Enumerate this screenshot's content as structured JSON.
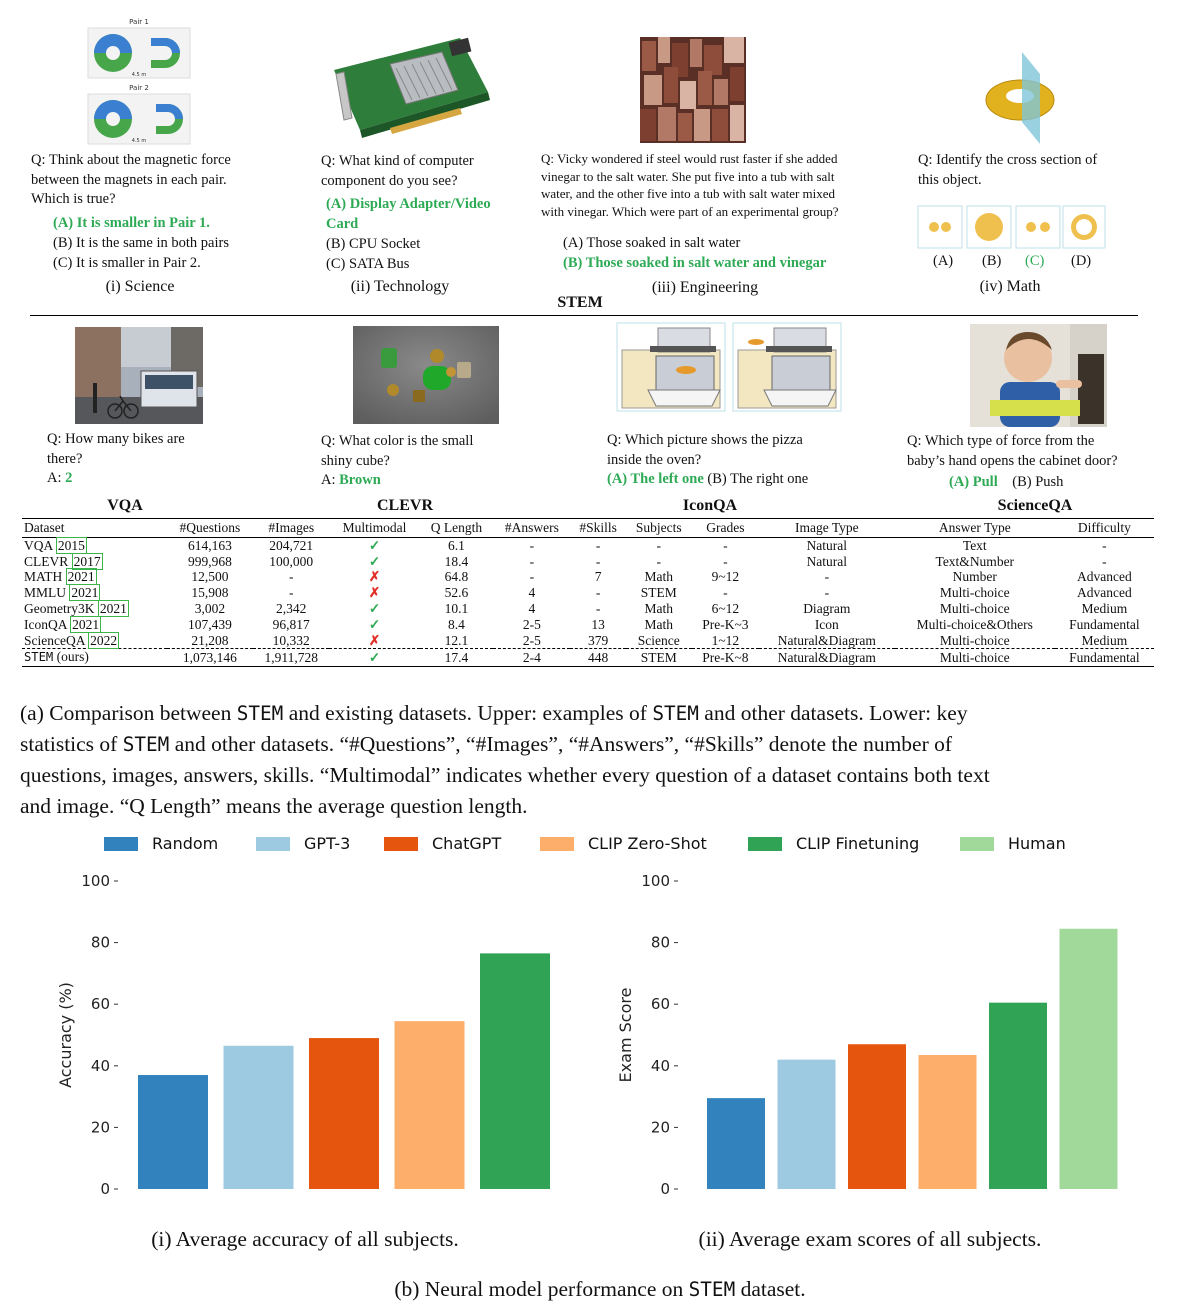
{
  "top": {
    "science": {
      "pair1": "Pair 1",
      "pair2": "Pair 2",
      "dist": "4.5 m",
      "question": [
        "Q: Think about the magnetic force",
        "between the magnets in each pair.",
        "Which is true?"
      ],
      "options": [
        "(A) It is smaller in Pair 1.",
        "(B) It is the same in both pairs",
        "(C) It is smaller in Pair 2."
      ],
      "label": "(i) Science"
    },
    "technology": {
      "question": [
        "Q: What kind of computer",
        "component do you see?"
      ],
      "options": [
        "(A) Display Adapter/Video",
        "Card",
        "(B) CPU Socket",
        "(C) SATA Bus"
      ],
      "label": "(ii) Technology"
    },
    "engineering": {
      "question": [
        "Q: Vicky wondered if steel would rust faster if she added",
        "vinegar to the salt water. She put five into a tub with salt",
        "water, and the other five into a tub with salt water mixed",
        "with vinegar. Which were part of an experimental group?"
      ],
      "options": [
        "(A) Those soaked in salt water",
        "(B) Those soaked in salt water and vinegar"
      ],
      "label": "(iii) Engineering"
    },
    "math": {
      "question": [
        "Q: Identify the cross section of",
        "this object."
      ],
      "choices": [
        "(A)",
        "(B)",
        "(C)",
        "(D)"
      ],
      "label": "(iv) Math"
    },
    "stem_label": "STEM"
  },
  "datasets": {
    "vqa": {
      "question": [
        "Q: How many bikes are",
        "there?"
      ],
      "answer_prefix": "A: ",
      "answer": "2",
      "title": "VQA"
    },
    "clevr": {
      "question": [
        "Q: What color is the small",
        "shiny cube?"
      ],
      "answer_prefix": "A: ",
      "answer": "Brown",
      "title": "CLEVR"
    },
    "iconqa": {
      "question": [
        "Q: Which picture shows the pizza",
        "inside the oven?"
      ],
      "opt_a": "(A) The left one",
      "opt_b": "(B) The right one",
      "title": "IconQA"
    },
    "scienceqa": {
      "question": [
        "Q: Which type of force from the",
        "baby’s hand opens the cabinet door?"
      ],
      "opt_a": "(A) Pull",
      "opt_b": "(B) Push",
      "title": "ScienceQA"
    }
  },
  "table": {
    "headers": [
      "Dataset",
      "#Questions",
      "#Images",
      "Multimodal",
      "Q Length",
      "#Answers",
      "#Skills",
      "Subjects",
      "Grades",
      "Image Type",
      "Answer Type",
      "Difficulty"
    ],
    "rows": [
      {
        "name": "VQA",
        "cite": "2015",
        "questions": "614,163",
        "images": "204,721",
        "mm": "✓",
        "qlen": "6.1",
        "answers": "-",
        "skills": "-",
        "subjects": "-",
        "grades": "-",
        "imgtype": "Natural",
        "anstype": "Text",
        "difficulty": "-"
      },
      {
        "name": "CLEVR",
        "cite": "2017",
        "questions": "999,968",
        "images": "100,000",
        "mm": "✓",
        "qlen": "18.4",
        "answers": "-",
        "skills": "-",
        "subjects": "-",
        "grades": "-",
        "imgtype": "Natural",
        "anstype": "Text&Number",
        "difficulty": "-"
      },
      {
        "name": "MATH",
        "cite": "2021",
        "questions": "12,500",
        "images": "-",
        "mm": "✗",
        "qlen": "64.8",
        "answers": "-",
        "skills": "7",
        "subjects": "Math",
        "grades": "9~12",
        "imgtype": "-",
        "anstype": "Number",
        "difficulty": "Advanced"
      },
      {
        "name": "MMLU",
        "cite": "2021",
        "questions": "15,908",
        "images": "-",
        "mm": "✗",
        "qlen": "52.6",
        "answers": "4",
        "skills": "-",
        "subjects": "STEM",
        "grades": "-",
        "imgtype": "-",
        "anstype": "Multi-choice",
        "difficulty": "Advanced"
      },
      {
        "name": "Geometry3K",
        "cite": "2021",
        "questions": "3,002",
        "images": "2,342",
        "mm": "✓",
        "qlen": "10.1",
        "answers": "4",
        "skills": "-",
        "subjects": "Math",
        "grades": "6~12",
        "imgtype": "Diagram",
        "anstype": "Multi-choice",
        "difficulty": "Medium"
      },
      {
        "name": "IconQA",
        "cite": "2021",
        "questions": "107,439",
        "images": "96,817",
        "mm": "✓",
        "qlen": "8.4",
        "answers": "2-5",
        "skills": "13",
        "subjects": "Math",
        "grades": "Pre-K~3",
        "imgtype": "Icon",
        "anstype": "Multi-choice&Others",
        "difficulty": "Fundamental"
      },
      {
        "name": "ScienceQA",
        "cite": "2022",
        "questions": "21,208",
        "images": "10,332",
        "mm": "✗",
        "qlen": "12.1",
        "answers": "2-5",
        "skills": "379",
        "subjects": "Science",
        "grades": "1~12",
        "imgtype": "Natural&Diagram",
        "anstype": "Multi-choice",
        "difficulty": "Medium"
      }
    ],
    "ours": {
      "name": "STEM",
      "suffix": " (ours)",
      "questions": "1,073,146",
      "images": "1,911,728",
      "mm": "✓",
      "qlen": "17.4",
      "answers": "2-4",
      "skills": "448",
      "subjects": "STEM",
      "grades": "Pre-K~8",
      "imgtype": "Natural&Diagram",
      "anstype": "Multi-choice",
      "difficulty": "Fundamental"
    }
  },
  "caption_a": {
    "text": [
      "(a) Comparison between ",
      "STEM",
      " and existing datasets. Upper: examples of ",
      "STEM",
      " and other datasets. Lower: key",
      "statistics of ",
      "STEM",
      " and other datasets. “#Questions”, “#Images”, “#Answers”, “#Skills” denote the number of",
      "questions, images, answers, skills. “Multimodal” indicates whether every question of a dataset contains both text",
      "and image. “Q Length” means the average question length."
    ]
  },
  "legend": [
    {
      "name": "Random",
      "color": "#3182bd"
    },
    {
      "name": "GPT-3",
      "color": "#9ecae1"
    },
    {
      "name": "ChatGPT",
      "color": "#e6550d"
    },
    {
      "name": "CLIP Zero-Shot",
      "color": "#fdae6b"
    },
    {
      "name": "CLIP Finetuning",
      "color": "#31a354"
    },
    {
      "name": "Human",
      "color": "#a1d99b"
    }
  ],
  "chart_data": [
    {
      "type": "bar",
      "categories": [
        "Random",
        "GPT-3",
        "ChatGPT",
        "CLIP Zero-Shot",
        "CLIP Finetuning"
      ],
      "values": [
        37,
        46.5,
        49,
        54.5,
        76.5
      ],
      "ylabel": "Accuracy (%)",
      "ylim": [
        0,
        100
      ],
      "yticks": [
        0,
        20,
        40,
        60,
        80,
        100
      ],
      "grid": false,
      "caption": "(i) Average accuracy of all subjects."
    },
    {
      "type": "bar",
      "categories": [
        "Random",
        "GPT-3",
        "ChatGPT",
        "CLIP Zero-Shot",
        "CLIP Finetuning",
        "Human"
      ],
      "values": [
        29.5,
        42,
        47,
        43.5,
        60.5,
        84.5
      ],
      "ylabel": "Exam Score",
      "ylim": [
        0,
        100
      ],
      "yticks": [
        0,
        20,
        40,
        60,
        80,
        100
      ],
      "grid": false,
      "caption": "(ii) Average exam scores of all subjects."
    }
  ],
  "caption_b": {
    "pre": "(b) Neural model performance on ",
    "mono": "STEM",
    "post": " dataset."
  }
}
